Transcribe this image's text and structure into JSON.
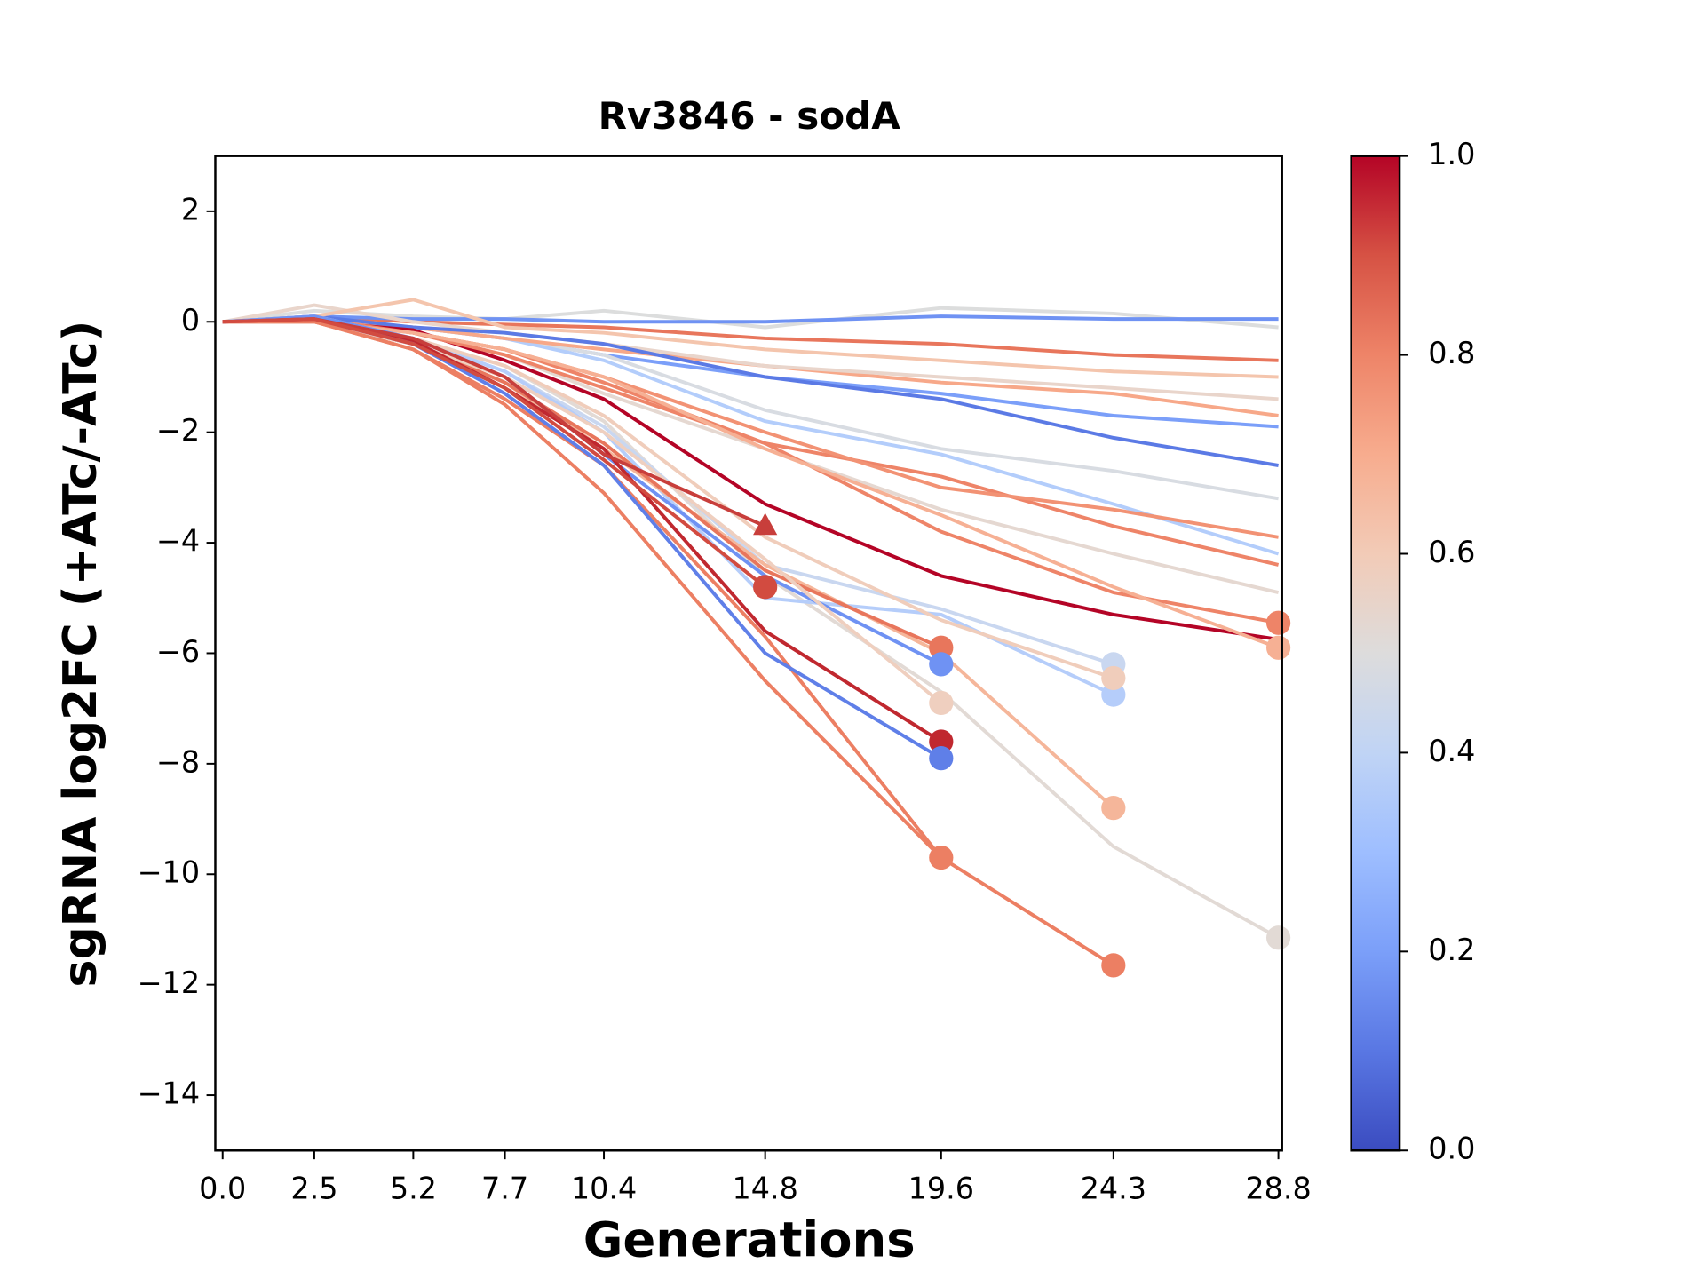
{
  "chart_data": {
    "type": "line",
    "title": "Rv3846 - sodA",
    "xlabel": "Generations",
    "ylabel": "sgRNA log2FC (+ATc/-ATc)",
    "x": [
      0,
      2.5,
      5.2,
      7.7,
      10.4,
      14.8,
      19.6,
      24.3,
      28.8
    ],
    "xlim": [
      -0.2,
      28.9
    ],
    "xticks": [
      {
        "value": 0,
        "label": "0.0"
      },
      2.5,
      5.2,
      7.7,
      10.4,
      14.8,
      19.6,
      24.3,
      28.8
    ],
    "ylim": [
      -15,
      3
    ],
    "yticks": [
      {
        "value": -14,
        "label": "−14"
      },
      {
        "value": -12,
        "label": "−12"
      },
      {
        "value": -10,
        "label": "−10"
      },
      {
        "value": -8,
        "label": "−8"
      },
      {
        "value": -6,
        "label": "−6"
      },
      {
        "value": -4,
        "label": "−4"
      },
      {
        "value": -2,
        "label": "−2"
      },
      0,
      2
    ],
    "colorbar": {
      "lim": [
        0,
        1
      ],
      "ticks": [
        {
          "value": 0,
          "label": "0.0"
        },
        0.2,
        0.4,
        0.6,
        0.8,
        {
          "value": 1,
          "label": "1.0"
        }
      ],
      "colors": [
        "#3b4cc0",
        "#5977e3",
        "#7b9ff9",
        "#9ebeff",
        "#c0d4f5",
        "#dddcdc",
        "#f2cbb7",
        "#f7ac8e",
        "#ee8468",
        "#d65244",
        "#b40426"
      ]
    },
    "series": [
      {
        "color": "#e8765c",
        "values": [
          0,
          0.1,
          0.0,
          -0.05,
          -0.1,
          -0.3,
          -0.4,
          -0.6,
          -0.7
        ]
      },
      {
        "color": "#dcdddd",
        "values": [
          0,
          0.2,
          0.1,
          0.05,
          0.2,
          -0.1,
          0.25,
          0.15,
          -0.1
        ]
      },
      {
        "color": "#6f92f3",
        "values": [
          0,
          0.1,
          0.05,
          0.05,
          0.0,
          0.0,
          0.1,
          0.05,
          0.05
        ]
      },
      {
        "color": "#7b9ff9",
        "values": [
          0,
          0.0,
          -0.1,
          -0.3,
          -0.6,
          -1.0,
          -1.3,
          -1.7,
          -1.9
        ]
      },
      {
        "color": "#d8dce2",
        "values": [
          0,
          0.05,
          -0.1,
          -0.3,
          -0.6,
          -1.6,
          -2.3,
          -2.7,
          -3.2
        ]
      },
      {
        "color": "#ee8468",
        "values": [
          0,
          0.05,
          -0.2,
          -0.5,
          -1.1,
          -2.2,
          -2.8,
          -3.7,
          -4.4
        ]
      },
      {
        "color": "#b3cdfb",
        "values": [
          0,
          0.0,
          -0.1,
          -0.3,
          -0.7,
          -1.8,
          -2.4,
          -3.3,
          -4.2
        ]
      },
      {
        "color": "#f7a889",
        "values": [
          0,
          0.0,
          -0.1,
          -0.3,
          -0.5,
          -0.8,
          -1.1,
          -1.3,
          -1.7
        ]
      },
      {
        "color": "#e9d5cb",
        "values": [
          0,
          0.3,
          0.0,
          -0.2,
          -0.4,
          -0.8,
          -1.0,
          -1.2,
          -1.4
        ]
      },
      {
        "color": "#5b7ae5",
        "values": [
          0,
          0.1,
          -0.1,
          -0.2,
          -0.4,
          -1.0,
          -1.4,
          -2.1,
          -2.6
        ]
      },
      {
        "color": "#f4c5ad",
        "values": [
          0,
          0.1,
          0.4,
          -0.1,
          -0.2,
          -0.5,
          -0.7,
          -0.9,
          -1.0
        ]
      },
      {
        "color": "#e5d8d1",
        "values": [
          0,
          0.05,
          -0.2,
          -0.6,
          -1.3,
          -2.3,
          -3.4,
          -4.2,
          -4.9
        ]
      },
      {
        "color": "#f29274",
        "values": [
          0,
          0.05,
          -0.2,
          -0.5,
          -1.0,
          -2.0,
          -3.0,
          -3.4,
          -3.9
        ]
      },
      {
        "color": "#b40426",
        "values": [
          0,
          0.0,
          -0.15,
          -0.7,
          -1.4,
          -3.3,
          -4.6,
          -5.3,
          -5.75
        ]
      },
      {
        "color": "#ee8468",
        "marker": "o",
        "values": [
          0,
          0.05,
          -0.2,
          -0.6,
          -1.2,
          -2.2,
          -3.8,
          -4.9,
          -5.45
        ]
      },
      {
        "color": "#f6b094",
        "marker": "o",
        "values": [
          0,
          0.0,
          -0.2,
          -0.5,
          -1.0,
          -2.3,
          -3.5,
          -4.8,
          -5.9
        ]
      },
      {
        "color": "#e2dad5",
        "marker": "o",
        "values": [
          0,
          0.1,
          -0.3,
          -0.8,
          -1.8,
          -4.6,
          -6.7,
          -9.5,
          -11.15
        ]
      },
      {
        "color": "#c9d7f0",
        "marker": "o",
        "values": [
          0,
          0.05,
          -0.3,
          -0.9,
          -1.9,
          -4.4,
          -5.2,
          -6.2,
          null
        ]
      },
      {
        "color": "#b5cdfa",
        "marker": "o",
        "values": [
          0,
          0.0,
          -0.3,
          -0.9,
          -2.0,
          -5.0,
          -5.3,
          -6.75,
          null
        ]
      },
      {
        "color": "#f0cdbb",
        "marker": "o",
        "values": [
          0,
          0.0,
          -0.3,
          -0.8,
          -1.7,
          -3.9,
          -5.4,
          -6.45,
          null
        ]
      },
      {
        "color": "#f5b69a",
        "marker": "o",
        "values": [
          0,
          0.05,
          -0.4,
          -1.1,
          -2.3,
          -4.4,
          -6.0,
          -8.8,
          null
        ]
      },
      {
        "color": "#ec7f63",
        "marker": "o",
        "values": [
          0,
          0.0,
          -0.5,
          -1.4,
          -2.6,
          -5.7,
          -9.7,
          -11.65,
          null
        ]
      },
      {
        "color": "#e8765c",
        "marker": "o",
        "values": [
          0,
          0.0,
          -0.4,
          -1.1,
          -2.2,
          -4.5,
          -5.9,
          null,
          null
        ]
      },
      {
        "color": "#6f92f3",
        "marker": "o",
        "values": [
          0,
          0.1,
          -0.3,
          -1.0,
          -2.4,
          -4.6,
          -6.2,
          null,
          null
        ]
      },
      {
        "color": "#efcfbf",
        "marker": "o",
        "values": [
          0,
          0.0,
          -0.4,
          -1.0,
          -2.0,
          -4.3,
          -6.9,
          null,
          null
        ]
      },
      {
        "color": "#c0282f",
        "marker": "o",
        "values": [
          0,
          0.05,
          -0.35,
          -1.2,
          -2.3,
          -5.6,
          -7.6,
          null,
          null
        ]
      },
      {
        "color": "#5f7fe8",
        "marker": "o",
        "values": [
          0,
          0.05,
          -0.4,
          -1.3,
          -2.6,
          -6.0,
          -7.9,
          null,
          null
        ]
      },
      {
        "color": "#ec7f63",
        "marker": "o",
        "values": [
          0,
          0.0,
          -0.5,
          -1.5,
          -3.1,
          -6.5,
          -9.7,
          null,
          null
        ]
      },
      {
        "color": "#c83e3b",
        "marker": "^",
        "values": [
          0,
          0.05,
          -0.3,
          -1.0,
          -2.4,
          -3.7,
          null,
          null,
          null
        ]
      },
      {
        "color": "#d24b40",
        "marker": "o",
        "values": [
          0,
          0.05,
          -0.4,
          -1.2,
          -2.5,
          -4.8,
          null,
          null,
          null
        ]
      }
    ]
  }
}
